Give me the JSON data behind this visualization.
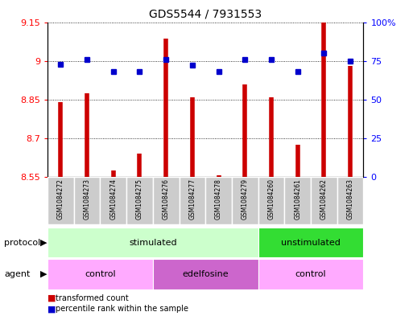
{
  "title": "GDS5544 / 7931553",
  "samples": [
    "GSM1084272",
    "GSM1084273",
    "GSM1084274",
    "GSM1084275",
    "GSM1084276",
    "GSM1084277",
    "GSM1084278",
    "GSM1084279",
    "GSM1084260",
    "GSM1084261",
    "GSM1084262",
    "GSM1084263"
  ],
  "red_values": [
    8.84,
    8.875,
    8.575,
    8.64,
    9.085,
    8.86,
    8.555,
    8.91,
    8.86,
    8.675,
    9.15,
    8.98
  ],
  "blue_values": [
    73,
    76,
    68,
    68,
    76,
    72,
    68,
    76,
    76,
    68,
    80,
    75
  ],
  "ylim_left": [
    8.55,
    9.15
  ],
  "ylim_right": [
    0,
    100
  ],
  "yticks_left": [
    8.55,
    8.7,
    8.85,
    9.0,
    9.15
  ],
  "yticks_left_labels": [
    "8.55",
    "8.7",
    "8.85",
    "9",
    "9.15"
  ],
  "yticks_right": [
    0,
    25,
    50,
    75,
    100
  ],
  "yticks_right_labels": [
    "0",
    "25",
    "50",
    "75",
    "100%"
  ],
  "protocol_groups": [
    {
      "label": "stimulated",
      "start": 0,
      "end": 8,
      "color": "#CCFFCC"
    },
    {
      "label": "unstimulated",
      "start": 8,
      "end": 12,
      "color": "#33DD33"
    }
  ],
  "agent_groups": [
    {
      "label": "control",
      "start": 0,
      "end": 4,
      "color": "#FFAAFF"
    },
    {
      "label": "edelfosine",
      "start": 4,
      "end": 8,
      "color": "#CC66CC"
    },
    {
      "label": "control",
      "start": 8,
      "end": 12,
      "color": "#FFAAFF"
    }
  ],
  "bar_color": "#CC0000",
  "dot_color": "#0000CC",
  "sample_box_color": "#CCCCCC",
  "legend_red": "transformed count",
  "legend_blue": "percentile rank within the sample",
  "title_fontsize": 10,
  "axis_fontsize": 8,
  "label_fontsize": 8
}
